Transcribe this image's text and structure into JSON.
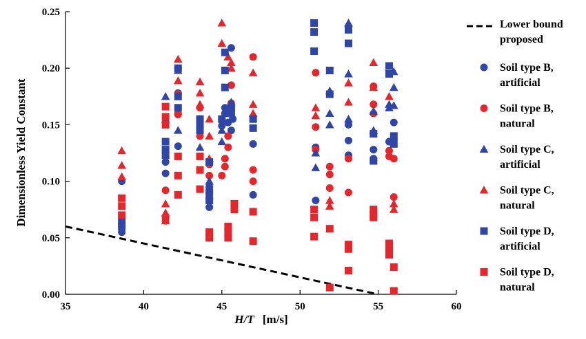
{
  "chart_data": {
    "type": "scatter",
    "xlabel_italic": "H/T",
    "xlabel_unit": "[m/s]",
    "ylabel": "Dimensionless Yield Constant",
    "xlim": [
      35,
      60
    ],
    "ylim": [
      0,
      0.25
    ],
    "xticks": [
      "35",
      "40",
      "45",
      "50",
      "55",
      "60"
    ],
    "yticks": [
      "0.00",
      "0.05",
      "0.10",
      "0.15",
      "0.20",
      "0.25"
    ],
    "grid": false,
    "legend_position": "right",
    "colors": {
      "blue": "#2f46a6",
      "red": "#e5262b"
    },
    "lower_bound": {
      "name_lines": [
        "Lower bound",
        "proposed"
      ],
      "points": [
        [
          35,
          0.06
        ],
        [
          55,
          0.0
        ]
      ]
    },
    "series": [
      {
        "name_lines": [
          "Soil type B,",
          "artificial"
        ],
        "color": "blue",
        "marker": "circle",
        "points": [
          [
            38.6,
            0.1
          ],
          [
            38.6,
            0.06
          ],
          [
            38.6,
            0.055
          ],
          [
            41.4,
            0.117
          ],
          [
            41.4,
            0.107
          ],
          [
            42.2,
            0.2
          ],
          [
            42.2,
            0.131
          ],
          [
            42.2,
            0.178
          ],
          [
            43.6,
            0.155
          ],
          [
            43.6,
            0.148
          ],
          [
            44.2,
            0.077
          ],
          [
            44.2,
            0.085
          ],
          [
            44.2,
            0.095
          ],
          [
            45.0,
            0.155
          ],
          [
            45.0,
            0.149
          ],
          [
            45.2,
            0.16
          ],
          [
            45.2,
            0.165
          ],
          [
            45.4,
            0.152
          ],
          [
            45.6,
            0.218
          ],
          [
            45.6,
            0.145
          ],
          [
            45.7,
            0.155
          ],
          [
            47.0,
            0.133
          ],
          [
            47.0,
            0.088
          ],
          [
            51.0,
            0.083
          ],
          [
            51.0,
            0.13
          ],
          [
            53.1,
            0.15
          ],
          [
            53.1,
            0.136
          ],
          [
            53.1,
            0.123
          ],
          [
            54.7,
            0.128
          ],
          [
            54.7,
            0.12
          ],
          [
            54.7,
            0.118
          ],
          [
            55.7,
            0.135
          ],
          [
            56.0,
            0.152
          ],
          [
            56.0,
            0.137
          ]
        ]
      },
      {
        "name_lines": [
          "Soil type B,",
          "natural"
        ],
        "color": "red",
        "marker": "circle",
        "points": [
          [
            41.4,
            0.092
          ],
          [
            41.4,
            0.068
          ],
          [
            41.4,
            0.065
          ],
          [
            42.2,
            0.16
          ],
          [
            42.2,
            0.159
          ],
          [
            42.2,
            0.177
          ],
          [
            43.6,
            0.165
          ],
          [
            43.6,
            0.14
          ],
          [
            43.6,
            0.155
          ],
          [
            44.2,
            0.115
          ],
          [
            44.2,
            0.105
          ],
          [
            45.0,
            0.105
          ],
          [
            45.2,
            0.12
          ],
          [
            45.2,
            0.113
          ],
          [
            45.4,
            0.14
          ],
          [
            45.4,
            0.13
          ],
          [
            45.6,
            0.185
          ],
          [
            45.6,
            0.169
          ],
          [
            47.0,
            0.21
          ],
          [
            47.0,
            0.11
          ],
          [
            47.0,
            0.1
          ],
          [
            51.0,
            0.196
          ],
          [
            51.0,
            0.148
          ],
          [
            51.0,
            0.128
          ],
          [
            51.9,
            0.113
          ],
          [
            51.9,
            0.106
          ],
          [
            51.9,
            0.094
          ],
          [
            53.1,
            0.09
          ],
          [
            53.1,
            0.12
          ],
          [
            54.7,
            0.184
          ],
          [
            54.7,
            0.168
          ],
          [
            54.7,
            0.16
          ],
          [
            55.7,
            0.127
          ],
          [
            55.7,
            0.122
          ],
          [
            56.0,
            0.086
          ],
          [
            56.0,
            0.12
          ]
        ]
      },
      {
        "name_lines": [
          "Soil type C,",
          "artificial"
        ],
        "color": "blue",
        "marker": "triangle",
        "points": [
          [
            41.4,
            0.175
          ],
          [
            41.4,
            0.155
          ],
          [
            42.2,
            0.198
          ],
          [
            42.2,
            0.145
          ],
          [
            43.6,
            0.13
          ],
          [
            44.2,
            0.1
          ],
          [
            45.0,
            0.135
          ],
          [
            45.0,
            0.145
          ],
          [
            45.2,
            0.16
          ],
          [
            45.6,
            0.2
          ],
          [
            45.6,
            0.17
          ],
          [
            51.0,
            0.125
          ],
          [
            51.0,
            0.112
          ],
          [
            51.9,
            0.18
          ],
          [
            51.9,
            0.16
          ],
          [
            51.9,
            0.15
          ],
          [
            53.1,
            0.24
          ],
          [
            53.1,
            0.195
          ],
          [
            53.1,
            0.155
          ],
          [
            54.7,
            0.162
          ],
          [
            54.7,
            0.145
          ],
          [
            55.7,
            0.168
          ],
          [
            55.7,
            0.165
          ],
          [
            56.0,
            0.197
          ],
          [
            56.0,
            0.183
          ],
          [
            56.0,
            0.167
          ]
        ]
      },
      {
        "name_lines": [
          "Soil type C,",
          "natural"
        ],
        "color": "red",
        "marker": "triangle",
        "points": [
          [
            38.6,
            0.127
          ],
          [
            38.6,
            0.114
          ],
          [
            38.6,
            0.104
          ],
          [
            41.4,
            0.08
          ],
          [
            41.4,
            0.072
          ],
          [
            41.4,
            0.065
          ],
          [
            42.2,
            0.208
          ],
          [
            42.2,
            0.189
          ],
          [
            43.6,
            0.188
          ],
          [
            43.6,
            0.178
          ],
          [
            43.6,
            0.168
          ],
          [
            44.2,
            0.155
          ],
          [
            44.2,
            0.14
          ],
          [
            44.2,
            0.12
          ],
          [
            45.0,
            0.24
          ],
          [
            45.0,
            0.222
          ],
          [
            45.4,
            0.21
          ],
          [
            45.6,
            0.205
          ],
          [
            45.6,
            0.2
          ],
          [
            47.0,
            0.196
          ],
          [
            47.0,
            0.168
          ],
          [
            47.0,
            0.16
          ],
          [
            51.0,
            0.165
          ],
          [
            51.0,
            0.158
          ],
          [
            51.9,
            0.083
          ],
          [
            51.9,
            0.078
          ],
          [
            53.1,
            0.187
          ],
          [
            53.1,
            0.17
          ],
          [
            54.7,
            0.205
          ],
          [
            54.7,
            0.183
          ],
          [
            55.7,
            0.175
          ],
          [
            56.0,
            0.08
          ],
          [
            56.0,
            0.075
          ]
        ]
      },
      {
        "name_lines": [
          "Soil type D,",
          "artificial"
        ],
        "color": "blue",
        "marker": "square",
        "points": [
          [
            38.6,
            0.065
          ],
          [
            38.6,
            0.06
          ],
          [
            41.4,
            0.135
          ],
          [
            41.4,
            0.128
          ],
          [
            41.4,
            0.123
          ],
          [
            42.2,
            0.2
          ],
          [
            42.2,
            0.175
          ],
          [
            42.2,
            0.165
          ],
          [
            43.6,
            0.155
          ],
          [
            43.6,
            0.15
          ],
          [
            43.6,
            0.145
          ],
          [
            44.2,
            0.117
          ],
          [
            44.2,
            0.09
          ],
          [
            44.2,
            0.083
          ],
          [
            45.0,
            0.155
          ],
          [
            45.2,
            0.214
          ],
          [
            45.2,
            0.198
          ],
          [
            45.2,
            0.183
          ],
          [
            45.6,
            0.165
          ],
          [
            45.6,
            0.16
          ],
          [
            47.0,
            0.155
          ],
          [
            47.0,
            0.147
          ],
          [
            50.9,
            0.24
          ],
          [
            50.9,
            0.232
          ],
          [
            50.9,
            0.215
          ],
          [
            51.9,
            0.198
          ],
          [
            51.9,
            0.177
          ],
          [
            53.1,
            0.234
          ],
          [
            53.1,
            0.222
          ],
          [
            54.7,
            0.142
          ],
          [
            54.7,
            0.118
          ],
          [
            55.7,
            0.202
          ],
          [
            55.7,
            0.195
          ],
          [
            56.0,
            0.14
          ],
          [
            56.0,
            0.133
          ]
        ]
      },
      {
        "name_lines": [
          "Soil type D,",
          "natural"
        ],
        "color": "red",
        "marker": "square",
        "points": [
          [
            38.6,
            0.085
          ],
          [
            38.6,
            0.078
          ],
          [
            38.6,
            0.07
          ],
          [
            41.4,
            0.166
          ],
          [
            41.4,
            0.157
          ],
          [
            41.4,
            0.15
          ],
          [
            42.2,
            0.122
          ],
          [
            42.2,
            0.105
          ],
          [
            42.2,
            0.088
          ],
          [
            43.6,
            0.122
          ],
          [
            43.6,
            0.11
          ],
          [
            43.6,
            0.093
          ],
          [
            44.2,
            0.055
          ],
          [
            44.2,
            0.05
          ],
          [
            45.4,
            0.06
          ],
          [
            45.4,
            0.055
          ],
          [
            45.4,
            0.05
          ],
          [
            45.8,
            0.08
          ],
          [
            45.8,
            0.075
          ],
          [
            47.0,
            0.073
          ],
          [
            47.0,
            0.047
          ],
          [
            50.9,
            0.075
          ],
          [
            50.9,
            0.068
          ],
          [
            50.9,
            0.051
          ],
          [
            51.9,
            0.058
          ],
          [
            51.9,
            0.006
          ],
          [
            53.1,
            0.044
          ],
          [
            53.1,
            0.04
          ],
          [
            53.1,
            0.021
          ],
          [
            54.7,
            0.075
          ],
          [
            54.7,
            0.07
          ],
          [
            54.7,
            0.068
          ],
          [
            55.7,
            0.045
          ],
          [
            55.7,
            0.04
          ],
          [
            55.7,
            0.035
          ],
          [
            56.0,
            0.024
          ],
          [
            56.0,
            0.003
          ]
        ]
      }
    ]
  }
}
